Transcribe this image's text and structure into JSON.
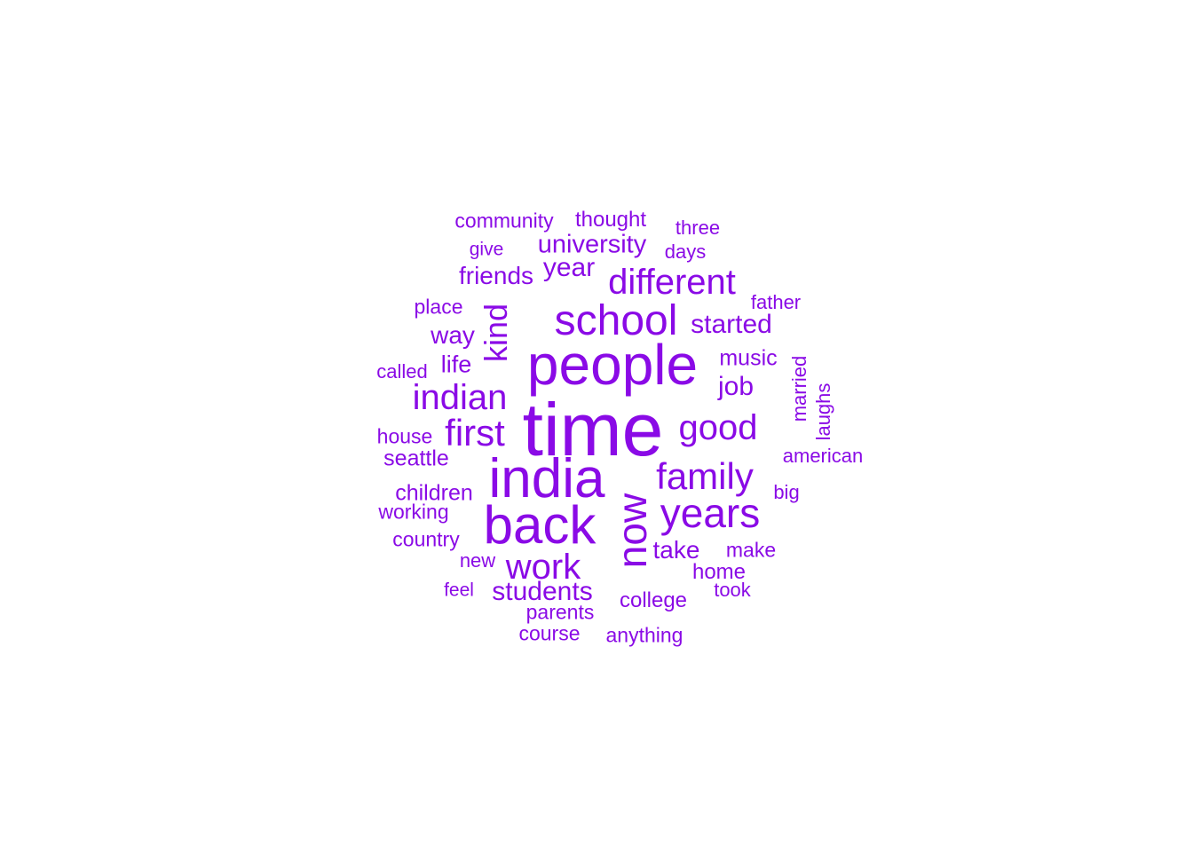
{
  "chart_data": {
    "type": "wordcloud",
    "color": "#8a0ae6",
    "words": [
      {
        "text": "time",
        "weight": 100
      },
      {
        "text": "people",
        "weight": 80
      },
      {
        "text": "india",
        "weight": 78
      },
      {
        "text": "back",
        "weight": 75
      },
      {
        "text": "now",
        "weight": 60
      },
      {
        "text": "school",
        "weight": 60
      },
      {
        "text": "years",
        "weight": 56
      },
      {
        "text": "family",
        "weight": 52
      },
      {
        "text": "different",
        "weight": 48
      },
      {
        "text": "good",
        "weight": 48
      },
      {
        "text": "indian",
        "weight": 46
      },
      {
        "text": "first",
        "weight": 45
      },
      {
        "text": "work",
        "weight": 45
      },
      {
        "text": "kind",
        "weight": 38
      },
      {
        "text": "students",
        "weight": 35
      },
      {
        "text": "started",
        "weight": 35
      },
      {
        "text": "university",
        "weight": 34
      },
      {
        "text": "year",
        "weight": 34
      },
      {
        "text": "job",
        "weight": 34
      },
      {
        "text": "friends",
        "weight": 32
      },
      {
        "text": "way",
        "weight": 32
      },
      {
        "text": "take",
        "weight": 32
      },
      {
        "text": "life",
        "weight": 30
      },
      {
        "text": "music",
        "weight": 30
      },
      {
        "text": "thought",
        "weight": 28
      },
      {
        "text": "community",
        "weight": 28
      },
      {
        "text": "seattle",
        "weight": 28
      },
      {
        "text": "children",
        "weight": 28
      },
      {
        "text": "college",
        "weight": 28
      },
      {
        "text": "home",
        "weight": 28
      },
      {
        "text": "place",
        "weight": 27
      },
      {
        "text": "house",
        "weight": 27
      },
      {
        "text": "working",
        "weight": 27
      },
      {
        "text": "country",
        "weight": 27
      },
      {
        "text": "parents",
        "weight": 27
      },
      {
        "text": "make",
        "weight": 27
      },
      {
        "text": "anything",
        "weight": 27
      },
      {
        "text": "course",
        "weight": 27
      },
      {
        "text": "american",
        "weight": 26
      },
      {
        "text": "father",
        "weight": 26
      },
      {
        "text": "days",
        "weight": 26
      },
      {
        "text": "three",
        "weight": 26
      },
      {
        "text": "called",
        "weight": 26
      },
      {
        "text": "new",
        "weight": 26
      },
      {
        "text": "married",
        "weight": 26
      },
      {
        "text": "laughs",
        "weight": 26
      },
      {
        "text": "give",
        "weight": 25
      },
      {
        "text": "feel",
        "weight": 25
      },
      {
        "text": "took",
        "weight": 25
      },
      {
        "text": "big",
        "weight": 25
      }
    ]
  }
}
